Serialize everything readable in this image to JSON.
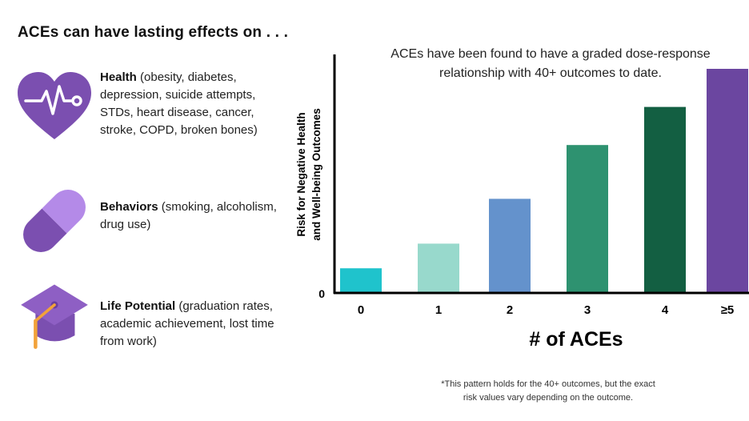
{
  "heading": "ACEs can have lasting effects on . . .",
  "effects": [
    {
      "label": "Health",
      "detail": " (obesity, diabetes, depression, suicide attempts, STDs, heart disease, cancer, stroke, COPD, broken bones)",
      "icon": "heart-pulse-icon"
    },
    {
      "label": "Behaviors",
      "detail": " (smoking, alcoholism, drug use)",
      "icon": "pill-capsule-icon"
    },
    {
      "label": "Life Potential",
      "detail": " (graduation rates, academic achievement, lost time from work)",
      "icon": "graduation-cap-icon"
    }
  ],
  "colors": {
    "icon_purple": "#7b4fb0",
    "icon_light_purple": "#b48ae8",
    "tassel": "#f2a23a"
  },
  "chart_data": {
    "type": "bar",
    "title": "ACEs have been found to have a graded dose-response relationship with 40+ outcomes to date.",
    "title_lines": [
      "ACEs have been found to have a graded dose-response",
      "relationship with 40+ outcomes to date."
    ],
    "xlabel": "# of ACEs",
    "ylabel": "Risk for Negative Health and Well-being Outcomes",
    "ylabel_lines": [
      "Risk for Negative Health",
      "and Well-being Outcomes"
    ],
    "categories": [
      "0",
      "1",
      "2",
      "3",
      "4",
      "≥5"
    ],
    "values": [
      11,
      22,
      42,
      66,
      83,
      100
    ],
    "ylim": [
      0,
      100
    ],
    "y_tick_label": "0",
    "grid": false,
    "colors": [
      "#1fc3cc",
      "#98d9cc",
      "#6492cc",
      "#2e9270",
      "#135f42",
      "#6b46a0"
    ]
  },
  "footnote": {
    "line1": "*This pattern holds for the 40+ outcomes, but the exact",
    "line2": "risk values vary depending on the outcome."
  }
}
